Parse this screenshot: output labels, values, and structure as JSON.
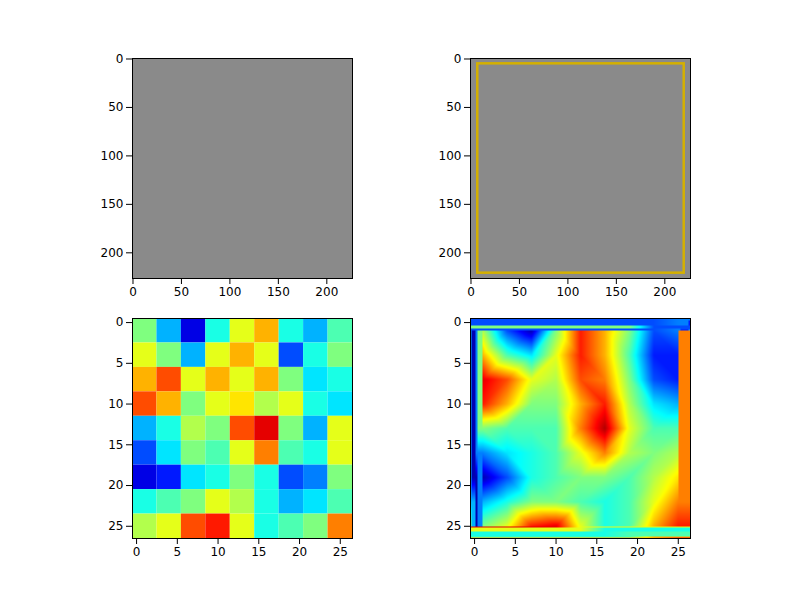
{
  "chart_data": [
    {
      "type": "image",
      "xlim": [
        -0.5,
        226.5
      ],
      "ylim": [
        226.5,
        -0.5
      ],
      "xticks": [
        0,
        50,
        100,
        150,
        200
      ],
      "yticks": [
        0,
        50,
        100,
        150,
        200
      ]
    },
    {
      "type": "image",
      "xlim": [
        -0.5,
        226.5
      ],
      "ylim": [
        226.5,
        -0.5
      ],
      "xticks": [
        0,
        50,
        100,
        150,
        200
      ],
      "yticks": [
        0,
        50,
        100,
        150,
        200
      ],
      "boxes": [
        {
          "x1": 7,
          "y1": 5,
          "x2": 220,
          "y2": 221,
          "color": "#d4b000"
        }
      ]
    },
    {
      "type": "heatmap",
      "xlim": [
        -0.5,
        26.5
      ],
      "ylim": [
        26.5,
        -0.5
      ],
      "xticks": [
        0,
        5,
        10,
        15,
        20,
        25
      ],
      "yticks": [
        0,
        5,
        10,
        15,
        20,
        25
      ],
      "color_range": [
        0,
        1
      ],
      "cells": [
        [
          0.5,
          0.3,
          0.1,
          0.4,
          0.6,
          0.7,
          0.4,
          0.3,
          0.45
        ],
        [
          0.6,
          0.5,
          0.3,
          0.6,
          0.7,
          0.6,
          0.2,
          0.4,
          0.5
        ],
        [
          0.7,
          0.8,
          0.6,
          0.7,
          0.6,
          0.7,
          0.5,
          0.35,
          0.4
        ],
        [
          0.8,
          0.7,
          0.5,
          0.6,
          0.65,
          0.55,
          0.6,
          0.4,
          0.35
        ],
        [
          0.3,
          0.4,
          0.55,
          0.5,
          0.8,
          0.9,
          0.5,
          0.3,
          0.6
        ],
        [
          0.2,
          0.35,
          0.5,
          0.45,
          0.6,
          0.75,
          0.45,
          0.4,
          0.6
        ],
        [
          0.1,
          0.15,
          0.35,
          0.4,
          0.5,
          0.4,
          0.2,
          0.25,
          0.5
        ],
        [
          0.4,
          0.45,
          0.5,
          0.6,
          0.55,
          0.4,
          0.3,
          0.35,
          0.45
        ],
        [
          0.55,
          0.6,
          0.8,
          0.85,
          0.6,
          0.4,
          0.45,
          0.5,
          0.75
        ]
      ]
    },
    {
      "type": "density",
      "xlim": [
        -0.5,
        26.5
      ],
      "ylim": [
        26.5,
        -0.5
      ],
      "xticks": [
        0,
        5,
        10,
        15,
        20,
        25
      ],
      "yticks": [
        0,
        5,
        10,
        15,
        20,
        25
      ],
      "color_range": [
        0,
        1
      ],
      "cells": [
        [
          0.55,
          0.2,
          0.05,
          0.5,
          0.85,
          0.7,
          0.5,
          0.2,
          0.25
        ],
        [
          0.7,
          0.45,
          0.35,
          0.6,
          0.85,
          0.7,
          0.45,
          0.15,
          0.15
        ],
        [
          0.9,
          0.8,
          0.6,
          0.55,
          0.8,
          0.75,
          0.5,
          0.2,
          0.15
        ],
        [
          0.85,
          0.7,
          0.5,
          0.5,
          0.7,
          0.85,
          0.55,
          0.35,
          0.3
        ],
        [
          0.5,
          0.45,
          0.45,
          0.45,
          0.75,
          0.95,
          0.6,
          0.45,
          0.45
        ],
        [
          0.25,
          0.35,
          0.4,
          0.45,
          0.6,
          0.75,
          0.55,
          0.5,
          0.55
        ],
        [
          0.05,
          0.2,
          0.4,
          0.45,
          0.5,
          0.5,
          0.45,
          0.55,
          0.65
        ],
        [
          0.3,
          0.4,
          0.5,
          0.5,
          0.45,
          0.4,
          0.45,
          0.6,
          0.75
        ],
        [
          0.5,
          0.6,
          0.85,
          0.9,
          0.6,
          0.4,
          0.45,
          0.7,
          0.85
        ]
      ]
    }
  ]
}
